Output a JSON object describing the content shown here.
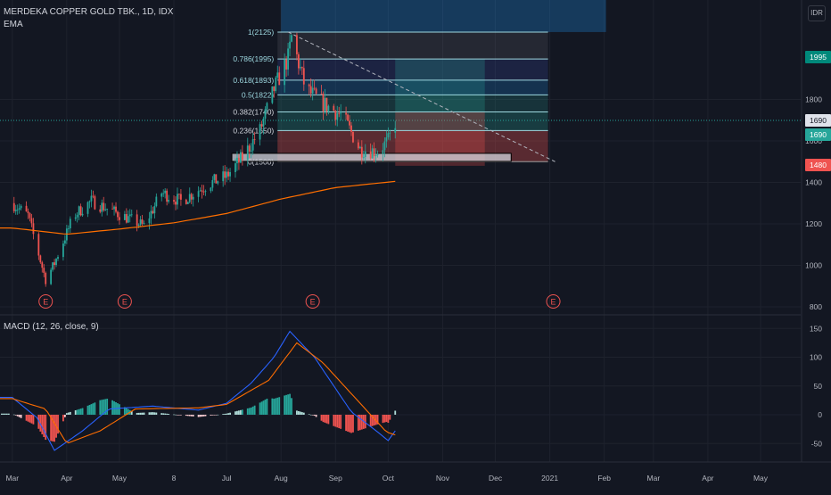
{
  "header": {
    "symbol_line": "MERDEKA COPPER GOLD TBK., 1D, IDX",
    "indicator": "EMA",
    "currency": "IDR"
  },
  "macd_header": "MACD (12, 26, close, 9)",
  "fib_labels": [
    "1(2125)",
    "0.786(1995)",
    "0.618(1893)",
    "0.5(1822)",
    "0.382(1740)",
    "0.236(1650)",
    "0(1500)"
  ],
  "price_badges": [
    "1995",
    "1690",
    "1690",
    "1480"
  ],
  "earnings_marker": "E",
  "colors": {
    "background": "#131722",
    "up": "#26a69a",
    "down": "#ef5350",
    "ema": "#ff6f00",
    "macd_line": "#2962ff",
    "signal_line": "#ff6d00",
    "fib_line": "#9ed8e0",
    "fib_teal": "#26a69a",
    "fib_red": "#ef5350",
    "fib_blue": "#2196f3",
    "trend_line": "#b2b5be"
  },
  "chart_data": [
    {
      "type": "candlestick",
      "title": "",
      "y_axis": {
        "ticks": [
          800,
          1000,
          1200,
          1400,
          1600,
          1800
        ],
        "min": 790,
        "max": 2180
      },
      "x_axis": {
        "ticks": [
          "Mar",
          "Apr",
          "May",
          "8",
          "Jul",
          "Aug",
          "Sep",
          "Oct",
          "Nov",
          "Dec",
          "2021",
          "Feb",
          "Mar",
          "Apr",
          "May"
        ]
      },
      "ohlc_close_sample": [
        [
          "2020-03-01",
          1300
        ],
        [
          "2020-03-10",
          1240
        ],
        [
          "2020-03-20",
          930
        ],
        [
          "2020-03-25",
          1010
        ],
        [
          "2020-04-05",
          1240
        ],
        [
          "2020-04-15",
          1310
        ],
        [
          "2020-04-30",
          1250
        ],
        [
          "2020-05-15",
          1190
        ],
        [
          "2020-05-25",
          1350
        ],
        [
          "2020-06-05",
          1310
        ],
        [
          "2020-06-20",
          1390
        ],
        [
          "2020-07-01",
          1430
        ],
        [
          "2020-07-10",
          1520
        ],
        [
          "2020-07-20",
          1650
        ],
        [
          "2020-07-28",
          1850
        ],
        [
          "2020-08-05",
          2000
        ],
        [
          "2020-08-07",
          2100
        ],
        [
          "2020-08-15",
          1850
        ],
        [
          "2020-08-25",
          1780
        ],
        [
          "2020-09-05",
          1720
        ],
        [
          "2020-09-15",
          1560
        ],
        [
          "2020-09-25",
          1550
        ],
        [
          "2020-10-01",
          1600
        ],
        [
          "2020-10-05",
          1690
        ]
      ],
      "ema_sample": [
        [
          "2020-03-01",
          1180
        ],
        [
          "2020-04-01",
          1150
        ],
        [
          "2020-05-01",
          1175
        ],
        [
          "2020-06-01",
          1205
        ],
        [
          "2020-07-01",
          1250
        ],
        [
          "2020-08-01",
          1320
        ],
        [
          "2020-09-01",
          1375
        ],
        [
          "2020-10-05",
          1405
        ]
      ],
      "fibonacci": [
        {
          "level": "1",
          "price": 2125
        },
        {
          "level": "0.786",
          "price": 1995
        },
        {
          "level": "0.618",
          "price": 1893
        },
        {
          "level": "0.5",
          "price": 1822
        },
        {
          "level": "0.382",
          "price": 1740
        },
        {
          "level": "0.236",
          "price": 1650
        },
        {
          "level": "0",
          "price": 1500
        }
      ],
      "price_markers": [
        1995,
        1690,
        1690,
        1480
      ]
    },
    {
      "type": "macd",
      "title": "",
      "y_axis": {
        "ticks": [
          -50,
          0,
          50,
          100,
          150
        ],
        "min": -66,
        "max": 158
      },
      "macd_sample": [
        [
          "2020-03-01",
          30
        ],
        [
          "2020-03-15",
          -5
        ],
        [
          "2020-03-25",
          -62
        ],
        [
          "2020-04-10",
          -28
        ],
        [
          "2020-04-25",
          10
        ],
        [
          "2020-05-20",
          15
        ],
        [
          "2020-06-15",
          8
        ],
        [
          "2020-07-01",
          20
        ],
        [
          "2020-07-15",
          55
        ],
        [
          "2020-07-28",
          100
        ],
        [
          "2020-08-06",
          145
        ],
        [
          "2020-08-20",
          100
        ],
        [
          "2020-09-10",
          5
        ],
        [
          "2020-09-25",
          -30
        ],
        [
          "2020-10-01",
          -45
        ],
        [
          "2020-10-05",
          -28
        ]
      ],
      "signal_sample": [
        [
          "2020-03-01",
          28
        ],
        [
          "2020-03-20",
          10
        ],
        [
          "2020-04-01",
          -50
        ],
        [
          "2020-04-20",
          -28
        ],
        [
          "2020-05-10",
          10
        ],
        [
          "2020-06-15",
          12
        ],
        [
          "2020-07-01",
          18
        ],
        [
          "2020-07-25",
          60
        ],
        [
          "2020-08-10",
          125
        ],
        [
          "2020-08-25",
          90
        ],
        [
          "2020-09-15",
          20
        ],
        [
          "2020-09-30",
          -30
        ],
        [
          "2020-10-05",
          -35
        ]
      ]
    }
  ]
}
